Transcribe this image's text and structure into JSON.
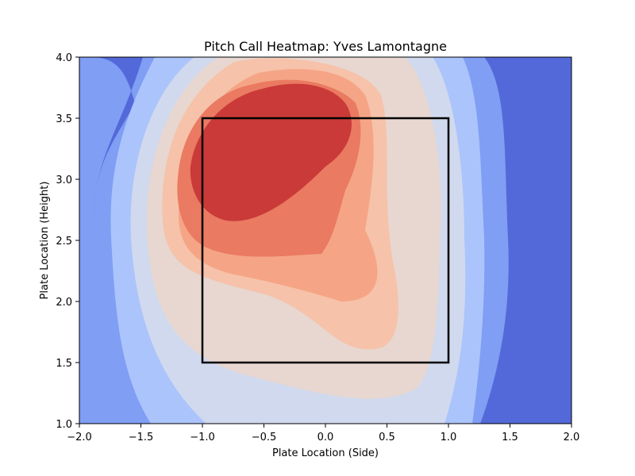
{
  "chart_data": {
    "type": "heatmap",
    "title": "Pitch Call Heatmap: Yves Lamontagne",
    "xlabel": "Plate Location (Side)",
    "ylabel": "Plate Location (Height)",
    "xlim": [
      -2.0,
      2.0
    ],
    "ylim": [
      1.0,
      4.0
    ],
    "x_ticks": [
      "−2.0",
      "−1.5",
      "−1.0",
      "−0.5",
      "0.0",
      "0.5",
      "1.0",
      "1.5",
      "2.0"
    ],
    "y_ticks": [
      "1.0",
      "1.5",
      "2.0",
      "2.5",
      "3.0",
      "3.5",
      "4.0"
    ],
    "colormap": "coolwarm",
    "contour_levels": 8,
    "strike_zone": {
      "x": [
        -1.0,
        1.0
      ],
      "y": [
        1.5,
        3.5
      ]
    },
    "density_peaks": [
      {
        "x": -0.5,
        "y": 3.1,
        "weight": 1.0
      },
      {
        "x": 0.3,
        "y": 2.0,
        "weight": 0.45
      }
    ],
    "colors": [
      "#5369d9",
      "#7f9ef4",
      "#abc4fb",
      "#d0d9ee",
      "#e7d7d0",
      "#f6c2aa",
      "#f5a586",
      "#ea7a62",
      "#c93a38"
    ],
    "grid": false,
    "legend": "none"
  }
}
